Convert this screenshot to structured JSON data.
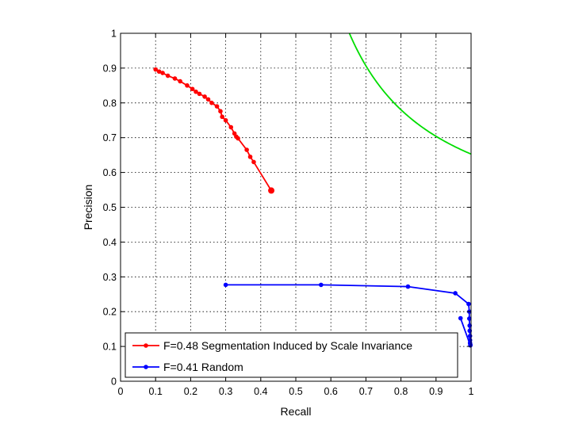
{
  "chart_data": {
    "type": "line",
    "xlabel": "Recall",
    "ylabel": "Precision",
    "xlim": [
      0,
      1
    ],
    "ylim": [
      0,
      1
    ],
    "xticks": [
      "0",
      "0.1",
      "0.2",
      "0.3",
      "0.4",
      "0.5",
      "0.6",
      "0.7",
      "0.8",
      "0.9",
      "1"
    ],
    "yticks": [
      "0",
      "0.1",
      "0.2",
      "0.3",
      "0.4",
      "0.5",
      "0.6",
      "0.7",
      "0.8",
      "0.9",
      "1"
    ],
    "grid": true,
    "legend_position": "bottom-left",
    "series": [
      {
        "name": "F=0.48 Segmentation Induced by Scale Invariance",
        "color": "#ff0000",
        "markers": true,
        "x": [
          0.1,
          0.11,
          0.12,
          0.135,
          0.155,
          0.17,
          0.19,
          0.205,
          0.215,
          0.225,
          0.24,
          0.25,
          0.26,
          0.275,
          0.285,
          0.29,
          0.3,
          0.315,
          0.325,
          0.33,
          0.335,
          0.36,
          0.37,
          0.38,
          0.43
        ],
        "y": [
          0.896,
          0.89,
          0.886,
          0.878,
          0.87,
          0.862,
          0.85,
          0.84,
          0.832,
          0.826,
          0.818,
          0.81,
          0.8,
          0.79,
          0.776,
          0.76,
          0.75,
          0.73,
          0.712,
          0.703,
          0.698,
          0.665,
          0.645,
          0.63,
          0.548
        ],
        "end_marker_large": true
      },
      {
        "name": "F=0.41 Random",
        "color": "#0000ff",
        "markers": true,
        "x": [
          0.3,
          0.572,
          0.82,
          0.955,
          0.993,
          0.995,
          0.995,
          0.996,
          0.996,
          0.997,
          0.997,
          0.997,
          0.998,
          0.998,
          0.97
        ],
        "y": [
          0.277,
          0.277,
          0.272,
          0.253,
          0.222,
          0.2,
          0.18,
          0.16,
          0.145,
          0.13,
          0.118,
          0.11,
          0.105,
          0.103,
          0.181
        ]
      },
      {
        "name": "",
        "color": "#00dd00",
        "markers": false,
        "curve": "f_contour",
        "f_value": 0.79,
        "x_range": [
          0.653,
          1
        ]
      }
    ]
  }
}
